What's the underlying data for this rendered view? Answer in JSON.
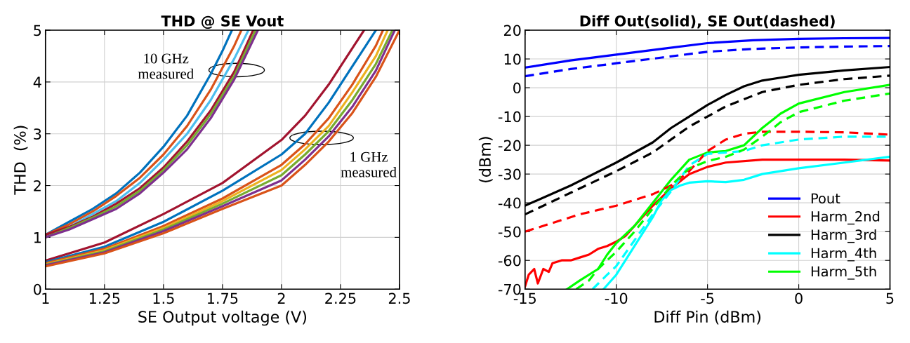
{
  "chart_data": [
    {
      "type": "line",
      "title": "THD @ SE Vout",
      "xlabel": "SE Output voltage (V)",
      "ylabel": "THD  (%)",
      "xlim": [
        1,
        2.5
      ],
      "xticks": [
        1,
        1.25,
        1.5,
        1.75,
        2,
        2.25,
        2.5
      ],
      "ylim": [
        0,
        5
      ],
      "yticks": [
        0,
        1,
        2,
        3,
        4,
        5
      ],
      "grid": true,
      "legend": false,
      "annotations": [
        "10 GHz\nmeasured",
        "1 GHz\nmeasured"
      ],
      "series": [
        {
          "color": "#0072bd",
          "x": [
            1,
            1.1,
            1.2,
            1.3,
            1.4,
            1.5,
            1.6,
            1.7,
            1.75,
            1.79
          ],
          "values": [
            1.05,
            1.3,
            1.55,
            1.85,
            2.25,
            2.75,
            3.35,
            4.15,
            4.6,
            5.0
          ]
        },
        {
          "color": "#d95319",
          "x": [
            1,
            1.1,
            1.2,
            1.3,
            1.4,
            1.5,
            1.6,
            1.7,
            1.8,
            1.83
          ],
          "values": [
            1.05,
            1.25,
            1.5,
            1.8,
            2.15,
            2.6,
            3.15,
            3.85,
            4.7,
            5.0
          ]
        },
        {
          "color": "#4dbeee",
          "x": [
            1,
            1.1,
            1.2,
            1.3,
            1.4,
            1.5,
            1.6,
            1.7,
            1.8,
            1.86
          ],
          "values": [
            1.0,
            1.2,
            1.45,
            1.7,
            2.05,
            2.5,
            3.0,
            3.65,
            4.45,
            5.0
          ]
        },
        {
          "color": "#a2142f",
          "x": [
            1,
            1.1,
            1.2,
            1.3,
            1.4,
            1.5,
            1.6,
            1.7,
            1.8,
            1.88
          ],
          "values": [
            1.05,
            1.2,
            1.4,
            1.65,
            1.95,
            2.35,
            2.85,
            3.45,
            4.2,
            5.0
          ]
        },
        {
          "color": "#77ac30",
          "x": [
            1,
            1.1,
            1.2,
            1.3,
            1.4,
            1.5,
            1.6,
            1.7,
            1.8,
            1.89
          ],
          "values": [
            1.0,
            1.18,
            1.38,
            1.6,
            1.9,
            2.3,
            2.78,
            3.38,
            4.12,
            5.0
          ]
        },
        {
          "color": "#7e2f8e",
          "x": [
            1,
            1.1,
            1.2,
            1.3,
            1.4,
            1.5,
            1.6,
            1.7,
            1.8,
            1.9
          ],
          "values": [
            1.0,
            1.15,
            1.35,
            1.55,
            1.85,
            2.25,
            2.7,
            3.3,
            4.05,
            5.0
          ]
        },
        {
          "color": "#a2142f",
          "x": [
            1,
            1.25,
            1.5,
            1.75,
            2,
            2.1,
            2.2,
            2.3,
            2.35
          ],
          "values": [
            0.55,
            0.9,
            1.45,
            2.05,
            2.88,
            3.35,
            3.95,
            4.65,
            5.0
          ]
        },
        {
          "color": "#0072bd",
          "x": [
            1,
            1.25,
            1.5,
            1.75,
            2,
            2.1,
            2.2,
            2.3,
            2.4
          ],
          "values": [
            0.52,
            0.82,
            1.3,
            1.9,
            2.6,
            3.0,
            3.6,
            4.3,
            5.0
          ]
        },
        {
          "color": "#d95319",
          "x": [
            1,
            1.25,
            1.5,
            1.75,
            2,
            2.1,
            2.2,
            2.3,
            2.4,
            2.43
          ],
          "values": [
            0.5,
            0.78,
            1.22,
            1.75,
            2.4,
            2.8,
            3.3,
            3.95,
            4.7,
            5.0
          ]
        },
        {
          "color": "#edb120",
          "x": [
            1,
            1.25,
            1.5,
            1.75,
            2,
            2.1,
            2.2,
            2.3,
            2.4,
            2.45
          ],
          "values": [
            0.48,
            0.75,
            1.18,
            1.7,
            2.3,
            2.7,
            3.15,
            3.8,
            4.5,
            5.0
          ]
        },
        {
          "color": "#77ac30",
          "x": [
            1,
            1.25,
            1.5,
            1.75,
            2,
            2.1,
            2.2,
            2.3,
            2.4,
            2.47
          ],
          "values": [
            0.47,
            0.73,
            1.15,
            1.65,
            2.2,
            2.6,
            3.05,
            3.65,
            4.35,
            5.0
          ]
        },
        {
          "color": "#7e2f8e",
          "x": [
            1,
            1.25,
            1.5,
            1.75,
            2,
            2.1,
            2.2,
            2.3,
            2.4,
            2.48
          ],
          "values": [
            0.46,
            0.71,
            1.12,
            1.6,
            2.1,
            2.5,
            2.95,
            3.52,
            4.22,
            5.0
          ]
        },
        {
          "color": "#d95319",
          "x": [
            1,
            1.25,
            1.5,
            1.75,
            2,
            2.1,
            2.2,
            2.3,
            2.4,
            2.5
          ],
          "values": [
            0.44,
            0.69,
            1.08,
            1.55,
            2.0,
            2.4,
            2.85,
            3.4,
            4.1,
            5.0
          ]
        }
      ]
    },
    {
      "type": "line",
      "title": "Diff Out(solid), SE Out(dashed)",
      "xlabel": "Diff Pin (dBm)",
      "ylabel": "(dBm)",
      "xlim": [
        -15,
        5
      ],
      "xticks": [
        -15,
        -10,
        -5,
        0,
        5
      ],
      "ylim": [
        -70,
        20
      ],
      "yticks": [
        -70,
        -60,
        -50,
        -40,
        -30,
        -20,
        -10,
        0,
        10,
        20
      ],
      "grid": true,
      "legend": "bottom right",
      "series": [
        {
          "name": "Pout",
          "color": "#0000ff",
          "line_style": "solid",
          "x": [
            -15,
            -12.5,
            -10,
            -7.5,
            -5,
            -2.5,
            0,
            2.5,
            5
          ],
          "values": [
            7,
            9.5,
            11.5,
            13.5,
            15.5,
            16.5,
            17,
            17.2,
            17.3
          ]
        },
        {
          "name": "Harm_2nd",
          "color": "#ff0000",
          "line_style": "solid",
          "x": [
            -15,
            -14.8,
            -14.5,
            -14.3,
            -14,
            -13.7,
            -13.5,
            -13,
            -12.5,
            -12,
            -11.5,
            -11,
            -10.5,
            -10,
            -9.5,
            -9,
            -8,
            -7,
            -6,
            -5,
            -4,
            -2,
            0,
            2.5,
            5
          ],
          "values": [
            -69,
            -65,
            -63,
            -68,
            -63,
            -64,
            -61,
            -60,
            -60,
            -59,
            -58,
            -56,
            -55,
            -53.5,
            -51.5,
            -48,
            -41,
            -35,
            -30,
            -27.5,
            -26,
            -25,
            -25,
            -25,
            -25.3
          ]
        },
        {
          "name": "Harm_3rd",
          "color": "#000000",
          "line_style": "solid",
          "x": [
            -15,
            -12.5,
            -10,
            -8,
            -7,
            -6,
            -5,
            -4,
            -3,
            -2,
            -1,
            0,
            2.5,
            5
          ],
          "values": [
            -41,
            -34,
            -26,
            -19,
            -14,
            -10,
            -6,
            -2.5,
            0.5,
            2.5,
            3.5,
            4.5,
            6,
            7.2
          ]
        },
        {
          "name": "Harm_4th",
          "color": "#00ffff",
          "line_style": "solid",
          "x": [
            -10.7,
            -10,
            -9,
            -8,
            -7.5,
            -7,
            -6.5,
            -6,
            -5,
            -4,
            -3,
            -2,
            0,
            2.5,
            5
          ],
          "values": [
            -70,
            -65,
            -55,
            -45,
            -39,
            -35.5,
            -34,
            -33,
            -32.5,
            -32.8,
            -32,
            -30,
            -28,
            -26,
            -24
          ]
        },
        {
          "name": "Harm_5th",
          "color": "#00ff00",
          "line_style": "solid",
          "x": [
            -12.7,
            -12,
            -11,
            -10.5,
            -10,
            -9,
            -8,
            -7,
            -6,
            -5,
            -4,
            -3,
            -2,
            -1,
            0,
            2.5,
            5
          ],
          "values": [
            -70,
            -67,
            -63,
            -58,
            -54,
            -48,
            -40,
            -32,
            -25,
            -22.5,
            -22,
            -20,
            -14,
            -9,
            -5.5,
            -1.5,
            1
          ]
        },
        {
          "color": "#0000ff",
          "line_style": "dashed",
          "x": [
            -15,
            -12.5,
            -10,
            -7.5,
            -5,
            -2.5,
            0,
            2.5,
            5
          ],
          "values": [
            4,
            6.5,
            8.5,
            10.5,
            12.5,
            13.5,
            14,
            14.3,
            14.5
          ]
        },
        {
          "color": "#ff0000",
          "line_style": "dashed",
          "x": [
            -15,
            -14,
            -13,
            -12,
            -11,
            -10,
            -9,
            -8,
            -7,
            -6,
            -5,
            -4,
            -3,
            -2,
            0,
            2.5,
            5
          ],
          "values": [
            -50,
            -48,
            -46,
            -44,
            -42.5,
            -41,
            -39,
            -37,
            -34,
            -29,
            -22,
            -18,
            -16,
            -15.3,
            -15.3,
            -15.5,
            -16.3
          ]
        },
        {
          "color": "#000000",
          "line_style": "dashed",
          "x": [
            -15,
            -12.5,
            -10,
            -8,
            -7,
            -6,
            -5,
            -4,
            -3,
            -2,
            0,
            2.5,
            5
          ],
          "values": [
            -44,
            -36.5,
            -29,
            -22.5,
            -18,
            -13.5,
            -10,
            -6.5,
            -4,
            -1.5,
            1,
            3,
            4.2
          ]
        },
        {
          "color": "#00ffff",
          "line_style": "dashed",
          "x": [
            -11.3,
            -10.5,
            -10,
            -9,
            -8,
            -7,
            -6,
            -5,
            -4,
            -3,
            -2,
            0,
            2.5,
            5
          ],
          "values": [
            -70,
            -65,
            -62,
            -53,
            -44,
            -36,
            -27,
            -23,
            -22.5,
            -22,
            -20,
            -18,
            -17,
            -17
          ]
        },
        {
          "color": "#00ff00",
          "line_style": "dashed",
          "x": [
            -12.2,
            -11.5,
            -11,
            -10,
            -9,
            -8,
            -7,
            -6,
            -5,
            -4,
            -3,
            -2,
            -1,
            0,
            2.5,
            5
          ],
          "values": [
            -70,
            -67,
            -63,
            -57,
            -50,
            -42,
            -34,
            -28,
            -25.5,
            -24,
            -21.5,
            -17,
            -12,
            -8.5,
            -4.5,
            -2
          ]
        }
      ]
    }
  ]
}
